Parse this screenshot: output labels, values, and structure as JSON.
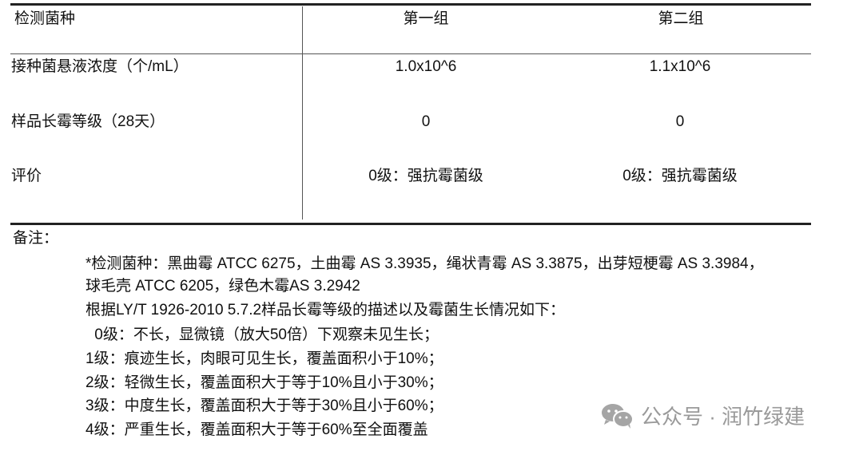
{
  "table": {
    "headers": [
      "检测菌种",
      "第一组",
      "第二组"
    ],
    "rows": [
      {
        "label": "接种菌悬液浓度（个/mL）",
        "group1": "1.0x10^6",
        "group2": "1.1x10^6"
      },
      {
        "label": "样品长霉等级（28天）",
        "group1": "0",
        "group2": "0"
      },
      {
        "label": "评价",
        "group1": "0级：强抗霉菌级",
        "group2": "0级：强抗霉菌级"
      }
    ]
  },
  "notes": {
    "title": "备注：",
    "lines": [
      "*检测菌种：黑曲霉 ATCC 6275，土曲霉 AS 3.3935，绳状青霉 AS 3.3875，出芽短梗霉 AS 3.3984，",
      "球毛壳 ATCC 6205，绿色木霉AS 3.2942",
      "根据LY/T 1926-2010 5.7.2样品长霉等级的描述以及霉菌生长情况如下：",
      " 0级：不长，显微镜（放大50倍）下观察未见生长；",
      "1级：痕迹生长，肉眼可见生长，覆盖面积小于10%；",
      "2级：轻微生长，覆盖面积大于等于10%且小于30%；",
      "3级：中度生长，覆盖面积大于等于30%且小于60%；",
      "4级：严重生长，覆盖面积大于等于60%至全面覆盖"
    ]
  },
  "watermark": {
    "icon": "wechat-icon",
    "text": "公众号 · 润竹绿建"
  }
}
